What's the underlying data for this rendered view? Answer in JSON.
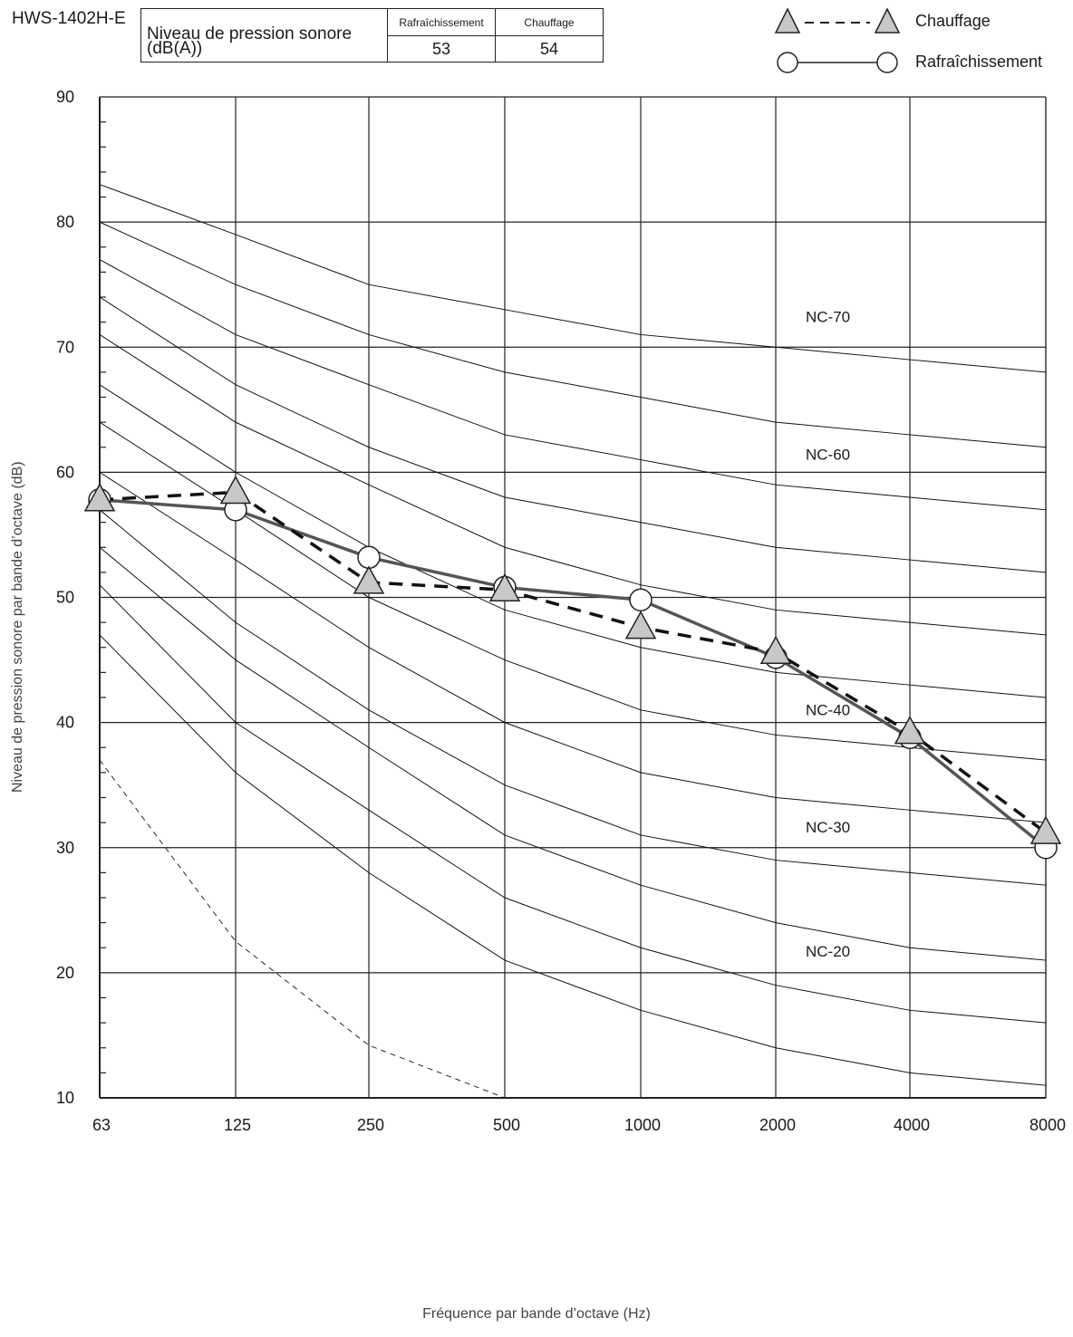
{
  "header": {
    "model": "HWS-1402H-E",
    "spl_table": {
      "label": "Niveau de pression sonore (dB(A))",
      "columns": [
        "Rafraîchissement",
        "Chauffage"
      ],
      "values": [
        "53",
        "54"
      ]
    }
  },
  "legend": {
    "items": [
      {
        "label": "Chauffage",
        "marker": "triangle",
        "line": "dashed"
      },
      {
        "label": "Rafraîchissement",
        "marker": "circle",
        "line": "solid"
      }
    ]
  },
  "colors": {
    "marker_fill": "#c8c8c8",
    "series_line": "#555555",
    "grid": "#222222"
  },
  "chart_data": {
    "type": "line",
    "xlabel": "Fréquence par bande d’octave (Hz)",
    "ylabel": "Niveau de pression sonore par bande d’octave (dB)",
    "x": [
      "63",
      "125",
      "250",
      "500",
      "1000",
      "2000",
      "4000",
      "8000"
    ],
    "ylim": [
      10,
      90
    ],
    "y_ticks": [
      "10",
      "20",
      "30",
      "40",
      "50",
      "60",
      "70",
      "80",
      "90"
    ],
    "grid": true,
    "legend_position": "top-right",
    "series": [
      {
        "name": "Chauffage",
        "marker": "triangle",
        "line": "dashed",
        "values": [
          57.8,
          58.4,
          51.2,
          50.6,
          47.6,
          45.6,
          39.2,
          31.2
        ]
      },
      {
        "name": "Rafraîchissement",
        "marker": "circle",
        "line": "solid",
        "values": [
          57.8,
          57.0,
          53.2,
          50.8,
          49.8,
          45.2,
          38.8,
          30.0
        ]
      }
    ],
    "nc_curves": [
      {
        "values": [
          83,
          79,
          75,
          73,
          71,
          70,
          69,
          68
        ]
      },
      {
        "values": [
          80,
          75,
          71,
          68,
          66,
          64,
          63,
          62
        ]
      },
      {
        "values": [
          77,
          71,
          67,
          63,
          61,
          59,
          58,
          57
        ]
      },
      {
        "values": [
          74,
          67,
          62,
          58,
          56,
          54,
          53,
          52
        ]
      },
      {
        "values": [
          71,
          64,
          59,
          54,
          51,
          49,
          48,
          47
        ]
      },
      {
        "values": [
          67,
          60,
          54,
          49,
          46,
          44,
          43,
          42
        ]
      },
      {
        "values": [
          64,
          57,
          50,
          45,
          41,
          39,
          38,
          37
        ]
      },
      {
        "values": [
          60,
          53,
          46,
          40,
          36,
          34,
          33,
          32
        ]
      },
      {
        "values": [
          57,
          48,
          41,
          35,
          31,
          29,
          28,
          27
        ]
      },
      {
        "values": [
          54,
          45,
          38,
          31,
          27,
          24,
          22,
          21
        ]
      },
      {
        "values": [
          51,
          40,
          33,
          26,
          22,
          19,
          17,
          16
        ]
      },
      {
        "values": [
          47,
          36,
          28,
          21,
          17,
          14,
          12,
          11
        ]
      }
    ],
    "threshold_curve": {
      "values": [
        37,
        22.5,
        14.2,
        10
      ]
    },
    "annotations": [
      {
        "text": "NC-70",
        "x": "2000",
        "y": 72
      },
      {
        "text": "NC-60",
        "x": "2000",
        "y": 61
      },
      {
        "text": "NC-40",
        "x": "2000",
        "y": 40.6
      },
      {
        "text": "NC-30",
        "x": "2000",
        "y": 31.2
      },
      {
        "text": "NC-20",
        "x": "2000",
        "y": 21.3
      }
    ]
  }
}
